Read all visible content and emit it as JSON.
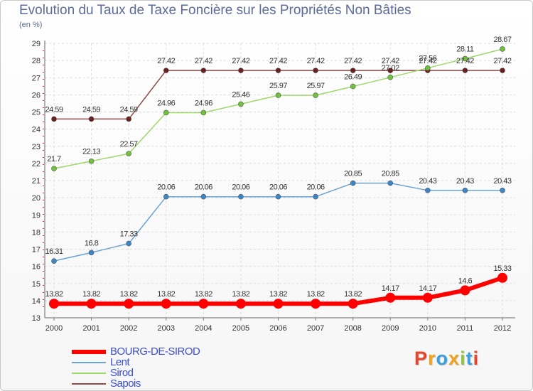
{
  "title": "Evolution du Taux de Taxe Foncière sur les Propriétés Non Bâties",
  "subtitle": "(en %)",
  "brand": "Proxiti",
  "brand_colors": [
    "#e8442a",
    "#f2a31b",
    "#3ba0dd",
    "#f2a31b",
    "#8dc63f",
    "#3ba0dd",
    "#e8442a"
  ],
  "chart_data": {
    "type": "line",
    "title": "Evolution du Taux de Taxe Foncière sur les Propriétés Non Bâties",
    "ylabel": "(en %)",
    "xlabel": "",
    "categories": [
      "2000",
      "2001",
      "2002",
      "2003",
      "2004",
      "2005",
      "2006",
      "2007",
      "2008",
      "2009",
      "2010",
      "2011",
      "2012"
    ],
    "ylim": [
      13,
      29
    ],
    "yticks": [
      "13",
      "14",
      "15",
      "16",
      "17",
      "18",
      "19",
      "20",
      "21",
      "22",
      "23",
      "24",
      "25",
      "26",
      "27",
      "28",
      "29"
    ],
    "grid": true,
    "legend_position": "bottom-left",
    "series": [
      {
        "name": "BOURG-DE-SIROD",
        "color": "#ff0000",
        "marker": "#ff0000",
        "width": 6,
        "values": [
          13.82,
          13.82,
          13.82,
          13.82,
          13.82,
          13.82,
          13.82,
          13.82,
          13.82,
          14.17,
          14.17,
          14.6,
          15.33
        ],
        "labels": [
          "13.82",
          "13.82",
          "13.82",
          "13.82",
          "13.82",
          "13.82",
          "13.82",
          "13.82",
          "13.82",
          "14.17",
          "14.17",
          "14.6",
          "15.33"
        ]
      },
      {
        "name": "Lent",
        "color": "#6aa3d5",
        "marker": "#3a86c8",
        "width": 1.5,
        "values": [
          16.31,
          16.8,
          17.33,
          20.06,
          20.06,
          20.06,
          20.06,
          20.06,
          20.85,
          20.85,
          20.43,
          20.43,
          20.43
        ],
        "labels": [
          "16.31",
          "16.8",
          "17.33",
          "20.06",
          "20.06",
          "20.06",
          "20.06",
          "20.06",
          "20.85",
          "20.85",
          "20.43",
          "20.43",
          "20.43"
        ]
      },
      {
        "name": "Sirod",
        "color": "#9ed86a",
        "marker": "#6fc23a",
        "width": 1.5,
        "values": [
          21.7,
          22.13,
          22.57,
          24.96,
          24.96,
          25.46,
          25.97,
          25.97,
          26.49,
          27.02,
          27.56,
          28.11,
          28.67
        ],
        "labels": [
          "21.7",
          "22.13",
          "22.57",
          "24.96",
          "24.96",
          "25.46",
          "25.97",
          "25.97",
          "26.49",
          "27.02",
          "27.56",
          "28.11",
          "28.67"
        ]
      },
      {
        "name": "Sapois",
        "color": "#8c4a4a",
        "marker": "#6b1f1f",
        "width": 1.5,
        "values": [
          24.59,
          24.59,
          24.59,
          27.42,
          27.42,
          27.42,
          27.42,
          27.42,
          27.42,
          27.42,
          27.42,
          27.42,
          27.42
        ],
        "labels": [
          "24.59",
          "24.59",
          "24.59",
          "27.42",
          "27.42",
          "27.42",
          "27.42",
          "27.42",
          "27.42",
          "27.42",
          "27.42",
          "27.42",
          "27.42"
        ]
      }
    ]
  }
}
